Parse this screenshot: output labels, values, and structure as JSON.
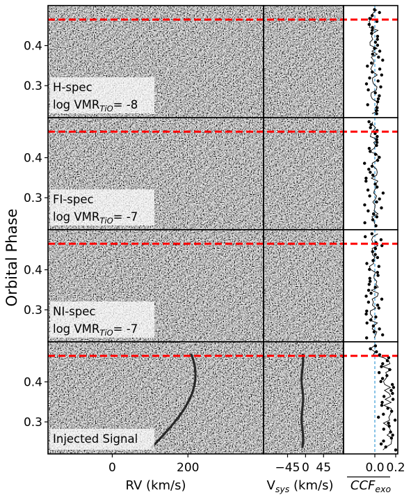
{
  "chart_data": {
    "type": "heatmap",
    "ylabel": "Orbital Phase",
    "yticks": [
      "0.4",
      "0.3"
    ],
    "ytick_values": [
      0.4,
      0.3
    ],
    "phase_range": [
      0.22,
      0.5
    ],
    "transit_phase": 0.465,
    "grid": false,
    "panels": [
      {
        "label_line1": "H-spec",
        "label_line2_pre": "log VMR",
        "label_line2_sub": "TiO",
        "label_line2_post": "= -8",
        "signal_visible": false
      },
      {
        "label_line1": "FI-spec",
        "label_line2_pre": "log VMR",
        "label_line2_sub": "TiO",
        "label_line2_post": "= -7",
        "signal_visible": false
      },
      {
        "label_line1": "NI-spec",
        "label_line2_pre": "log VMR",
        "label_line2_sub": "TiO",
        "label_line2_post": "= -7",
        "signal_visible": false
      },
      {
        "label_line1": "Injected Signal",
        "label_line2_pre": "",
        "label_line2_sub": "",
        "label_line2_post": "",
        "signal_visible": true
      }
    ],
    "columns": [
      {
        "name": "rv_map",
        "xlabel": "RV (km/s)",
        "xticks": [
          "0",
          "200"
        ],
        "xtick_values": [
          0,
          200
        ],
        "xlim": [
          -170,
          400
        ]
      },
      {
        "name": "vsys_map",
        "xlabel_pre": "V",
        "xlabel_sub": "sys",
        "xlabel_post": " (km/s)",
        "xticks": [
          "−45",
          "0",
          "45"
        ],
        "xtick_values": [
          -45,
          0,
          45
        ],
        "xlim": [
          -105,
          95
        ]
      },
      {
        "name": "ccf_exo",
        "xlabel": "CCF",
        "xlabel_sub": "exo",
        "xticks": [
          "0.0",
          "0.2"
        ],
        "xtick_values": [
          0.0,
          0.2
        ],
        "xlim": [
          -0.3,
          0.22
        ],
        "zero_line_value": 0.0
      }
    ],
    "colors": {
      "transit_line": "#ff0000",
      "zero_line": "#3a9bd6",
      "points": "#000000"
    }
  }
}
